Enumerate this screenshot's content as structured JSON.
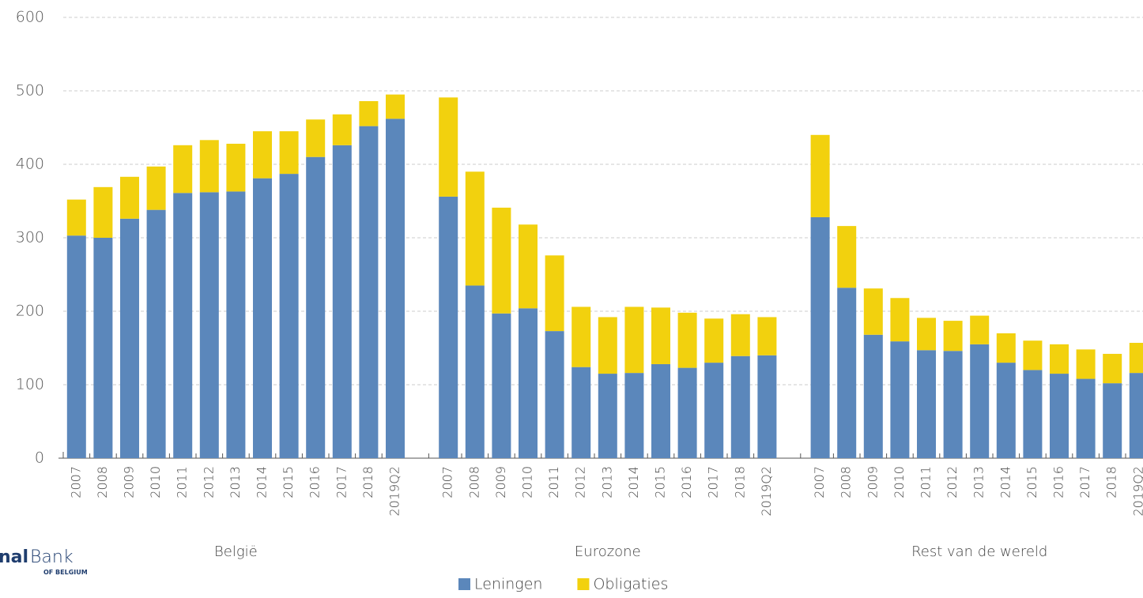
{
  "chart_data": {
    "type": "stacked_bar",
    "categories": [
      "2007",
      "2008",
      "2009",
      "2010",
      "2011",
      "2012",
      "2013",
      "2014",
      "2015",
      "2016",
      "2017",
      "2018",
      "2019Q2",
      null,
      "2007",
      "2008",
      "2009",
      "2010",
      "2011",
      "2012",
      "2013",
      "2014",
      "2015",
      "2016",
      "2017",
      "2018",
      "2019Q2",
      null,
      "2007",
      "2008",
      "2009",
      "2010",
      "2011",
      "2012",
      "2013",
      "2014",
      "2015",
      "2016",
      "2017",
      "2018",
      "2019Q2"
    ],
    "group_labels": [
      "België",
      "Eurozone",
      "Rest van de wereld"
    ],
    "series": [
      {
        "name": "Leningen",
        "color": "#5b87bb",
        "values": [
          303,
          300,
          326,
          338,
          361,
          362,
          363,
          381,
          387,
          410,
          426,
          452,
          462,
          null,
          356,
          235,
          197,
          204,
          173,
          124,
          115,
          116,
          128,
          123,
          130,
          139,
          140,
          null,
          328,
          232,
          168,
          159,
          147,
          146,
          155,
          130,
          120,
          115,
          108,
          102,
          116
        ]
      },
      {
        "name": "Obligaties",
        "color": "#f2d10e",
        "values": [
          49,
          69,
          57,
          59,
          65,
          71,
          65,
          64,
          58,
          51,
          42,
          34,
          33,
          null,
          135,
          155,
          144,
          114,
          103,
          82,
          77,
          90,
          77,
          75,
          60,
          57,
          52,
          null,
          112,
          84,
          63,
          59,
          44,
          41,
          39,
          40,
          40,
          40,
          40,
          40,
          41
        ]
      }
    ],
    "ylim": [
      0,
      600
    ],
    "yticks": [
      0,
      100,
      200,
      300,
      400,
      500,
      600
    ],
    "grid": true,
    "legend": "bottom",
    "logo": {
      "bold": "nal",
      "light": "Bank",
      "sub": "OF BELGIUM"
    }
  }
}
